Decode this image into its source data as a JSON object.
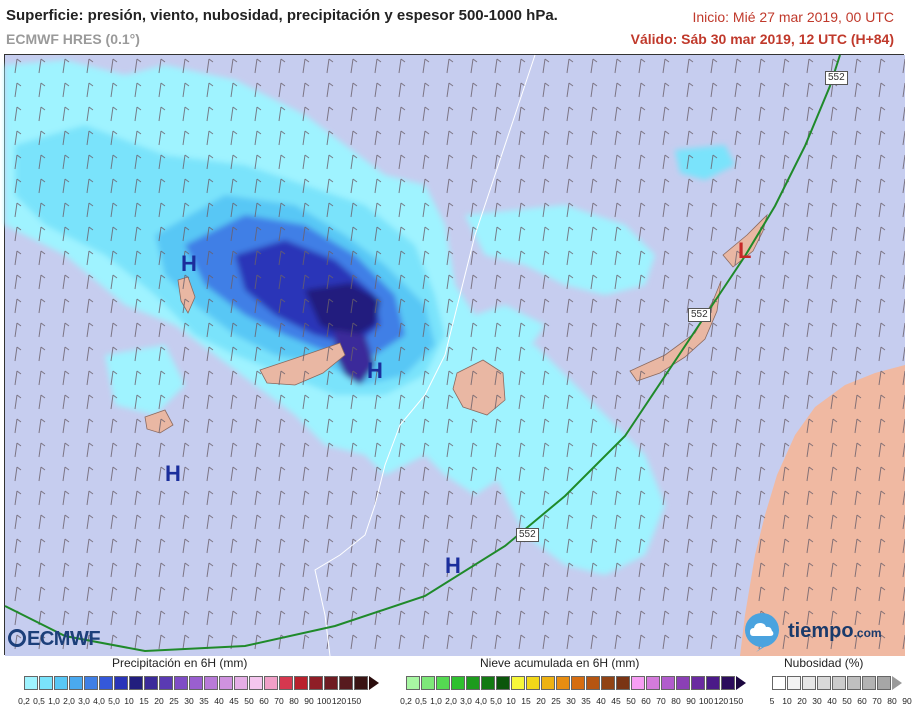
{
  "header": {
    "title": "Superficie: presión, viento, nubosidad, precipitación y espesor 500-1000 hPa.",
    "model": "ECMWF HRES (0.1°)",
    "init": "Inicio: Mié 27 mar 2019, 00 UTC",
    "valid": "Válido: Sáb 30 mar 2019, 12 UTC (H+84)"
  },
  "map": {
    "isohypse_labels": [
      "552",
      "552",
      "552"
    ],
    "pressure_centers": [
      {
        "label": "H",
        "type": "high"
      },
      {
        "label": "H",
        "type": "high"
      },
      {
        "label": "H",
        "type": "high"
      },
      {
        "label": "H",
        "type": "high"
      },
      {
        "label": "L",
        "type": "low"
      }
    ],
    "colors": {
      "sea": "#c6cdef",
      "land": "#e9b7a3",
      "africa": "#f0b9a2",
      "isohypse": "#1f8a2a",
      "high": "#1b2e9c",
      "low": "#c62828"
    }
  },
  "logos": {
    "ecmwf": "ECMWF",
    "tiempo": "tiempo",
    "tiempo_suffix": ".com",
    "tiempo_icon": "cloud-icon"
  },
  "legends": {
    "precipitation": {
      "title": "Precipitación en 6H (mm)",
      "colors": [
        "#9ff3ff",
        "#7ae3fb",
        "#58c7f5",
        "#4aa9ef",
        "#3f7fe6",
        "#3558da",
        "#2934b8",
        "#221e7e",
        "#3b2a9a",
        "#5a3ab3",
        "#7f4cc6",
        "#9a5fd0",
        "#b87ad8",
        "#cf92df",
        "#e5aee6",
        "#f4c6ee",
        "#f09fc7",
        "#d6384f",
        "#b8202c",
        "#8f1e27",
        "#6e1b22",
        "#571a1e",
        "#3a1414"
      ],
      "ticks": [
        "0,2",
        "0,5",
        "1,0",
        "2,0",
        "3,0",
        "4,0",
        "5,0",
        "10",
        "15",
        "20",
        "25",
        "30",
        "35",
        "40",
        "45",
        "50",
        "60",
        "70",
        "80",
        "90",
        "100",
        "120",
        "150"
      ]
    },
    "snow": {
      "title": "Nieve acumulada en 6H (mm)",
      "colors": [
        "#a8f7a3",
        "#7ee879",
        "#55d952",
        "#2fc02f",
        "#1d9b1d",
        "#137a13",
        "#0b560b",
        "#f7f73a",
        "#f2d719",
        "#eeb212",
        "#e78d12",
        "#d66d10",
        "#b55512",
        "#914314",
        "#7a3414",
        "#f69ef3",
        "#d47bdb",
        "#b15ccc",
        "#8b40b5",
        "#6a2aa0",
        "#4b1a88",
        "#2c0c5c"
      ],
      "ticks": [
        "0,2",
        "0,5",
        "1,0",
        "2,0",
        "3,0",
        "4,0",
        "5,0",
        "10",
        "15",
        "20",
        "25",
        "30",
        "35",
        "40",
        "45",
        "50",
        "60",
        "70",
        "80",
        "90",
        "100",
        "120",
        "150"
      ]
    },
    "cloud": {
      "title": "Nubosidad (%)",
      "colors": [
        "#ffffff",
        "#f3f3f3",
        "#e6e6e6",
        "#d9d9d9",
        "#cccccc",
        "#bfbfbf",
        "#b3b3b3",
        "#a6a6a6"
      ],
      "ticks": [
        "5",
        "10",
        "20",
        "30",
        "40",
        "50",
        "60",
        "70",
        "80",
        "90"
      ]
    }
  }
}
